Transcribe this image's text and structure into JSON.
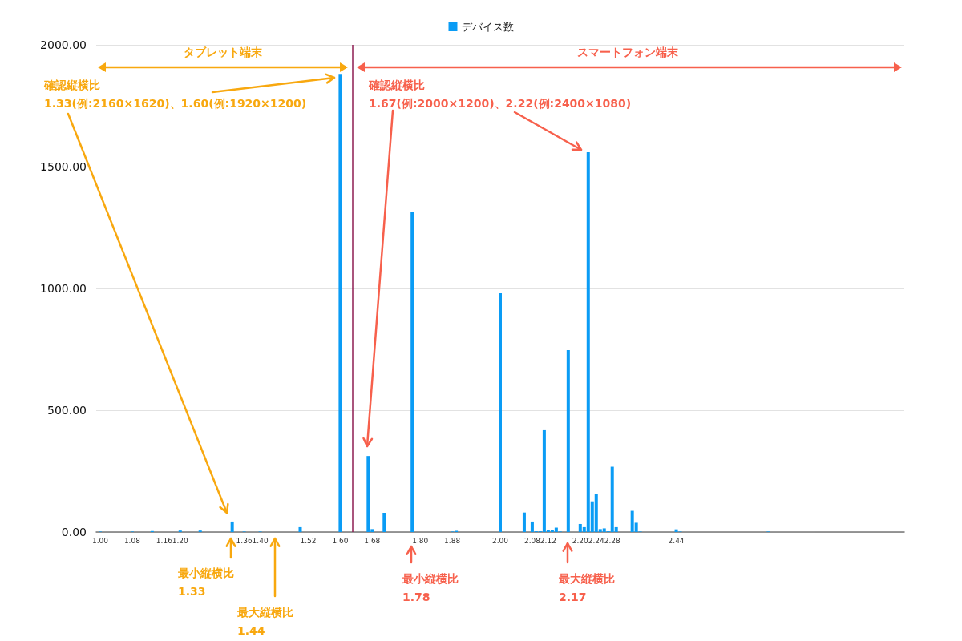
{
  "chart_data": {
    "type": "bar",
    "x": [
      1.0,
      1.08,
      1.13,
      1.2,
      1.25,
      1.33,
      1.36,
      1.4,
      1.5,
      1.6,
      1.67,
      1.68,
      1.71,
      1.78,
      1.88,
      1.89,
      2.0,
      2.06,
      2.07,
      2.08,
      2.09,
      2.1,
      2.11,
      2.12,
      2.13,
      2.14,
      2.15,
      2.17,
      2.2,
      2.21,
      2.22,
      2.23,
      2.24,
      2.25,
      2.26,
      2.27,
      2.28,
      2.29,
      2.33,
      2.34,
      2.35,
      2.44,
      2.45,
      2.67
    ],
    "series": [
      {
        "name": "デバイス数",
        "color": "#0a9cf5",
        "values": [
          2,
          2,
          4,
          6,
          6,
          43,
          2,
          2,
          20,
          1881,
          312,
          12,
          79,
          1316,
          2,
          5,
          980,
          80,
          null,
          43,
          3,
          3,
          418,
          8,
          8,
          18,
          2,
          747,
          33,
          20,
          1559,
          126,
          157,
          12,
          15,
          3,
          268,
          20,
          87,
          38,
          2,
          11,
          2,
          2
        ]
      }
    ],
    "xlim": [
      0.99,
      3.01
    ],
    "xticks": [
      {
        "value": 1,
        "label": "1.00"
      },
      1.08,
      1.16,
      {
        "value": 1.2,
        "label": "1.20"
      },
      1.36,
      {
        "value": 1.4,
        "label": "1.40"
      },
      1.52,
      {
        "value": 1.6,
        "label": "1.60"
      },
      1.68,
      {
        "value": 1.8,
        "label": "1.80"
      },
      1.88,
      {
        "value": 2,
        "label": "2.00"
      },
      2.08,
      2.12,
      {
        "value": 2.2,
        "label": "2.20"
      },
      2.24,
      2.28,
      2.44
    ],
    "ylim": [
      0,
      2000
    ],
    "yticks": [
      {
        "value": 0,
        "label": "0.00"
      },
      {
        "value": 500,
        "label": "500.00"
      },
      {
        "value": 1000,
        "label": "1000.00"
      },
      {
        "value": 1500,
        "label": "1500.00"
      },
      {
        "value": 2000,
        "label": "2000.00"
      }
    ],
    "grid": "y",
    "legend": "top",
    "ref_lines": [
      {
        "axis": "x",
        "value": 1.63,
        "color": "#8e1c52"
      }
    ],
    "annotations": [
      "タブレット端末",
      "スマートフォン端末",
      "確認縦横比\n1.33(例:2160×1620)、1.60(例:1920×1200)",
      "確認縦横比\n1.67(例:2000×1200)、2.22(例:2400×1080)",
      "最小縦横比\n1.33",
      "最大縦横比\n1.44",
      "最小縦横比\n1.78",
      "最大縦横比\n2.17"
    ]
  }
}
